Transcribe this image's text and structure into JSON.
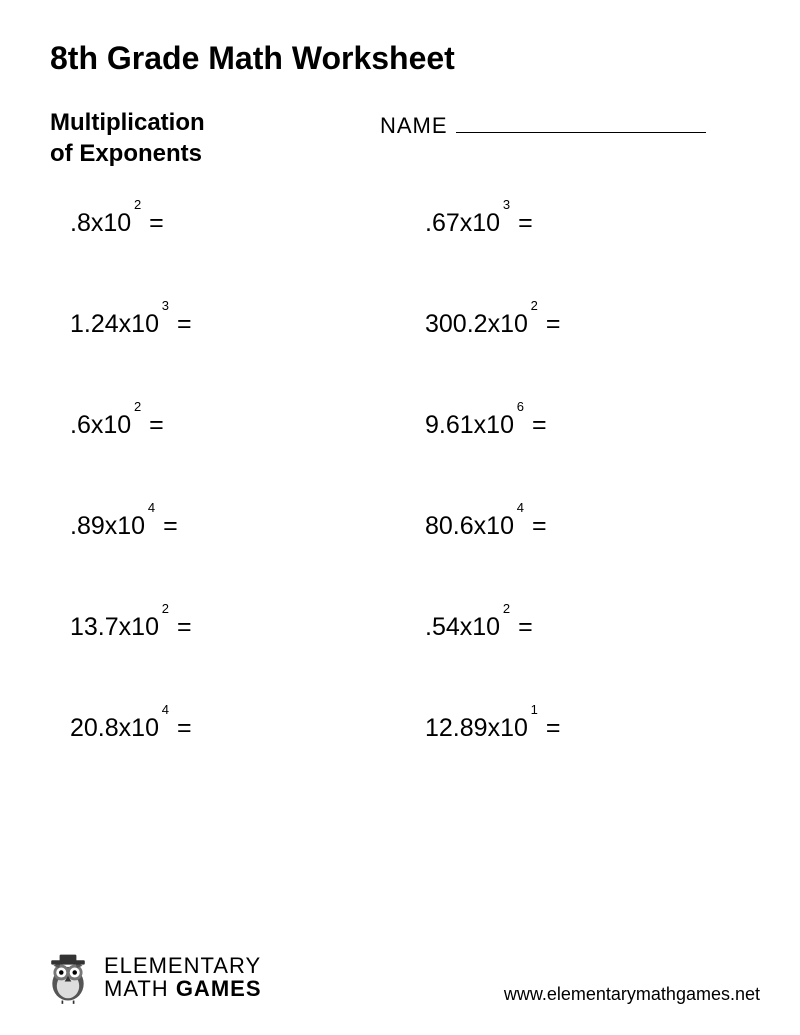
{
  "title": "8th Grade Math Worksheet",
  "subtitle_line1": "Multiplication",
  "subtitle_line2": "of Exponents",
  "name_label": "NAME",
  "problems": [
    {
      "coefficient": ".8",
      "base": "10",
      "exponent": "2"
    },
    {
      "coefficient": ".67",
      "base": "10",
      "exponent": "3"
    },
    {
      "coefficient": "1.24",
      "base": "10",
      "exponent": "3"
    },
    {
      "coefficient": "300.2",
      "base": "10",
      "exponent": "2"
    },
    {
      "coefficient": ".6",
      "base": "10",
      "exponent": "2"
    },
    {
      "coefficient": "9.61",
      "base": "10",
      "exponent": "6"
    },
    {
      "coefficient": ".89",
      "base": "10",
      "exponent": "4"
    },
    {
      "coefficient": "80.6",
      "base": "10",
      "exponent": "4"
    },
    {
      "coefficient": "13.7",
      "base": "10",
      "exponent": "2"
    },
    {
      "coefficient": ".54",
      "base": "10",
      "exponent": "2"
    },
    {
      "coefficient": "20.8",
      "base": "10",
      "exponent": "4"
    },
    {
      "coefficient": "12.89",
      "base": "10",
      "exponent": "1"
    }
  ],
  "equals": "=",
  "times": " x ",
  "logo_line1": "ELEMENTARY",
  "logo_line2a": "MATH ",
  "logo_line2b": "GAMES",
  "url": "www.elementarymathgames.net",
  "colors": {
    "text": "#000000",
    "background": "#ffffff"
  }
}
